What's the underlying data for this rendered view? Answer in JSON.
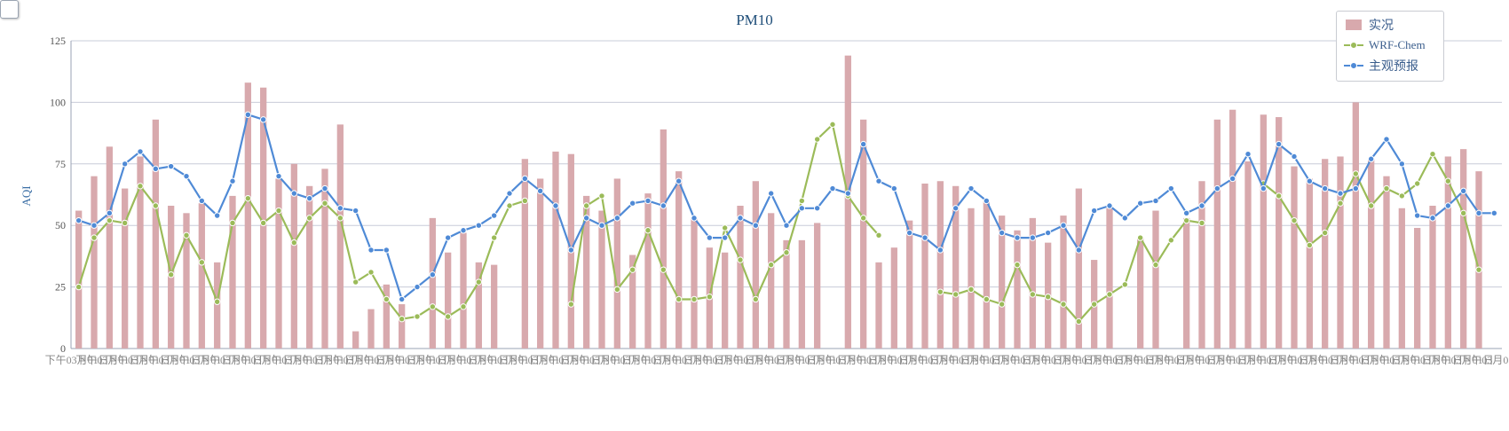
{
  "chart_data": {
    "type": "bar",
    "title": "PM10",
    "ylabel": "AQI",
    "xlabel": "",
    "ylim": [
      0,
      125
    ],
    "yticks": [
      0,
      25,
      50,
      75,
      100,
      125
    ],
    "grid": true,
    "legend_position": "top-right",
    "x_tick_text": "下午03月01日",
    "categories": [
      "1",
      "2",
      "3",
      "4",
      "5",
      "6",
      "7",
      "8",
      "9",
      "10",
      "11",
      "12",
      "13",
      "14",
      "15",
      "16",
      "17",
      "18",
      "19",
      "20",
      "21",
      "22",
      "23",
      "24",
      "25",
      "26",
      "27",
      "28",
      "29",
      "30",
      "31",
      "32",
      "33",
      "34",
      "35",
      "36",
      "37",
      "38",
      "39",
      "40",
      "41",
      "42",
      "43",
      "44",
      "45",
      "46",
      "47",
      "48",
      "49",
      "50",
      "51",
      "52",
      "53",
      "54",
      "55",
      "56",
      "57",
      "58",
      "59",
      "60",
      "61",
      "62",
      "63",
      "64",
      "65",
      "66",
      "67",
      "68",
      "69",
      "70",
      "71",
      "72",
      "73",
      "74",
      "75",
      "76",
      "77",
      "78",
      "79",
      "80",
      "81",
      "82",
      "83",
      "84",
      "85",
      "86",
      "87",
      "88",
      "89",
      "90",
      "91",
      "92",
      "93"
    ],
    "series": [
      {
        "name": "实况",
        "type": "bar",
        "color": "#d8a9ad",
        "values": [
          56,
          70,
          82,
          65,
          78,
          93,
          58,
          55,
          59,
          35,
          62,
          108,
          106,
          69,
          75,
          66,
          73,
          91,
          7,
          16,
          26,
          18,
          null,
          53,
          39,
          47,
          35,
          34,
          null,
          77,
          69,
          80,
          79,
          62,
          56,
          69,
          38,
          63,
          89,
          72,
          53,
          41,
          39,
          58,
          68,
          55,
          44,
          44,
          51,
          null,
          119,
          93,
          35,
          41,
          52,
          67,
          68,
          66,
          57,
          60,
          54,
          48,
          53,
          43,
          54,
          65,
          36,
          57,
          null,
          45,
          56,
          null,
          53,
          68,
          93,
          97,
          76,
          95,
          94,
          74,
          69,
          77,
          78,
          100,
          77,
          70,
          57,
          49,
          58,
          78,
          81,
          72,
          null
        ]
      },
      {
        "name": "WRF-Chem",
        "type": "line",
        "color": "#9bbb59",
        "values": [
          25,
          45,
          52,
          51,
          66,
          58,
          30,
          46,
          35,
          19,
          51,
          61,
          51,
          56,
          43,
          53,
          59,
          53,
          27,
          31,
          20,
          12,
          13,
          17,
          13,
          17,
          27,
          45,
          58,
          60,
          null,
          null,
          18,
          58,
          62,
          24,
          32,
          48,
          32,
          20,
          20,
          21,
          49,
          36,
          20,
          34,
          39,
          60,
          85,
          91,
          62,
          53,
          46,
          null,
          null,
          null,
          23,
          22,
          24,
          20,
          18,
          34,
          22,
          21,
          18,
          11,
          18,
          22,
          26,
          45,
          34,
          44,
          52,
          51,
          null,
          null,
          null,
          67,
          62,
          52,
          42,
          47,
          59,
          71,
          58,
          65,
          62,
          67,
          79,
          68,
          55,
          32,
          null
        ]
      },
      {
        "name": "主观预报",
        "type": "line",
        "color": "#4f8ad6",
        "values": [
          52,
          50,
          55,
          75,
          80,
          73,
          74,
          70,
          60,
          54,
          68,
          95,
          93,
          70,
          63,
          61,
          65,
          57,
          56,
          40,
          40,
          20,
          25,
          30,
          45,
          48,
          50,
          54,
          63,
          69,
          64,
          58,
          40,
          53,
          50,
          53,
          59,
          60,
          58,
          68,
          53,
          45,
          45,
          53,
          50,
          63,
          50,
          57,
          57,
          65,
          63,
          83,
          68,
          65,
          47,
          45,
          40,
          57,
          65,
          60,
          47,
          45,
          45,
          47,
          50,
          40,
          56,
          58,
          53,
          59,
          60,
          65,
          55,
          58,
          65,
          69,
          79,
          65,
          83,
          78,
          68,
          65,
          63,
          65,
          77,
          85,
          75,
          54,
          53,
          58,
          64,
          55,
          55
        ]
      }
    ]
  }
}
